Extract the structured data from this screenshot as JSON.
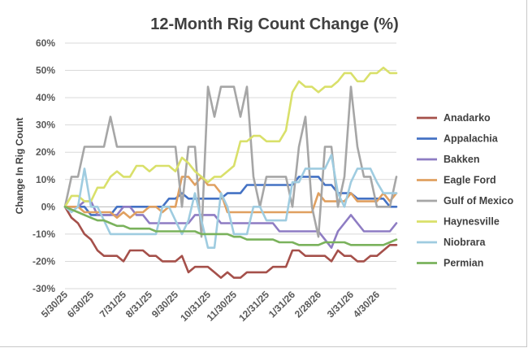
{
  "chart_data": {
    "type": "line",
    "title": "12-Month Rig Count Change (%)",
    "xlabel": "",
    "ylabel": "Change In Rig Count",
    "ylim": [
      -30,
      60
    ],
    "yticks": [
      -30,
      -20,
      -10,
      0,
      10,
      20,
      30,
      40,
      50,
      60
    ],
    "ytick_labels": [
      "-30%",
      "-20%",
      "-10%",
      "0%",
      "10%",
      "20%",
      "30%",
      "40%",
      "50%",
      "60%"
    ],
    "x_tick_labels": [
      "5/30/25",
      "6/30/25",
      "7/31/25",
      "8/31/25",
      "9/30/25",
      "10/31/25",
      "11/30/25",
      "12/31/25",
      "1/31/26",
      "2/28/26",
      "3/31/26",
      "4/30/26"
    ],
    "x_tick_index": [
      0,
      4,
      9,
      13,
      17,
      22,
      26,
      31,
      35,
      39,
      44,
      48
    ],
    "grid": true,
    "legend_position": "right",
    "series": [
      {
        "name": "Anadarko",
        "color": "#a5504a",
        "values": [
          0,
          -4,
          -6,
          -10,
          -12,
          -16,
          -18,
          -18,
          -18,
          -20,
          -16,
          -16,
          -16,
          -18,
          -18,
          -20,
          -20,
          -20,
          -18,
          -24,
          -22,
          -22,
          -22,
          -24,
          -26,
          -24,
          -26,
          -26,
          -24,
          -24,
          -24,
          -24,
          -22,
          -22,
          -22,
          -16,
          -16,
          -18,
          -18,
          -18,
          -18,
          -20,
          -16,
          -18,
          -18,
          -20,
          -20,
          -18,
          -18,
          -16,
          -14,
          -14
        ]
      },
      {
        "name": "Appalachia",
        "color": "#4472c4",
        "values": [
          0,
          0,
          0,
          0,
          -3,
          -3,
          -3,
          -3,
          0,
          0,
          0,
          0,
          0,
          0,
          0,
          0,
          3,
          3,
          5,
          3,
          3,
          3,
          3,
          3,
          3,
          5,
          5,
          5,
          8,
          8,
          8,
          8,
          8,
          8,
          8,
          8,
          11,
          11,
          11,
          11,
          8,
          8,
          5,
          5,
          5,
          3,
          3,
          3,
          3,
          3,
          0,
          0
        ]
      },
      {
        "name": "Bakken",
        "color": "#8e7cc3",
        "values": [
          0,
          0,
          0,
          2,
          2,
          -3,
          -3,
          -3,
          -3,
          0,
          0,
          -3,
          -3,
          -6,
          -6,
          -6,
          -6,
          -6,
          -6,
          -6,
          -3,
          -3,
          -3,
          -3,
          -6,
          -6,
          -6,
          -6,
          -6,
          -6,
          -6,
          -6,
          -6,
          -9,
          -9,
          -9,
          -9,
          -9,
          -9,
          -9,
          -12,
          -15,
          -9,
          -6,
          -3,
          -6,
          -9,
          -9,
          -9,
          -9,
          -9,
          -6
        ]
      },
      {
        "name": "Eagle Ford",
        "color": "#e0a060",
        "values": [
          0,
          0,
          0,
          -2,
          -2,
          -2,
          -2,
          -2,
          -4,
          -2,
          -4,
          -2,
          -2,
          0,
          0,
          -2,
          0,
          0,
          11,
          11,
          8,
          11,
          8,
          8,
          5,
          -2,
          -2,
          -2,
          -2,
          -2,
          -2,
          -2,
          -2,
          -2,
          -2,
          -2,
          -2,
          -2,
          -2,
          5,
          2,
          2,
          2,
          2,
          5,
          2,
          2,
          2,
          2,
          5,
          2,
          5
        ]
      },
      {
        "name": "Gulf of Mexico",
        "color": "#a6a6a6",
        "values": [
          0,
          11,
          11,
          22,
          22,
          22,
          22,
          33,
          22,
          22,
          22,
          22,
          22,
          22,
          22,
          22,
          22,
          22,
          0,
          22,
          22,
          -11,
          44,
          33,
          44,
          44,
          44,
          33,
          44,
          11,
          0,
          11,
          11,
          11,
          11,
          0,
          22,
          33,
          0,
          -11,
          22,
          22,
          0,
          11,
          44,
          22,
          11,
          11,
          0,
          0,
          0,
          11
        ]
      },
      {
        "name": "Haynesville",
        "color": "#d9e06a",
        "values": [
          0,
          4,
          4,
          2,
          2,
          7,
          7,
          11,
          13,
          11,
          11,
          15,
          15,
          13,
          15,
          15,
          15,
          13,
          18,
          16,
          13,
          11,
          9,
          11,
          11,
          13,
          15,
          24,
          24,
          26,
          26,
          24,
          24,
          24,
          28,
          42,
          46,
          44,
          44,
          42,
          44,
          44,
          46,
          49,
          49,
          46,
          46,
          49,
          49,
          51,
          49,
          49
        ]
      },
      {
        "name": "Niobrara",
        "color": "#9fcce0",
        "values": [
          0,
          -2,
          0,
          14,
          0,
          0,
          -5,
          -10,
          -10,
          -10,
          -10,
          -10,
          -10,
          -10,
          -10,
          0,
          0,
          -5,
          -10,
          -5,
          5,
          -5,
          -15,
          -15,
          5,
          0,
          -10,
          -10,
          -10,
          0,
          0,
          -5,
          -5,
          -5,
          -5,
          9,
          9,
          14,
          14,
          14,
          14,
          19,
          5,
          0,
          9,
          14,
          14,
          14,
          9,
          5,
          5,
          5
        ]
      },
      {
        "name": "Permian",
        "color": "#7ab25c",
        "values": [
          0,
          -1,
          -2,
          -3,
          -4,
          -5,
          -5,
          -6,
          -7,
          -7,
          -8,
          -8,
          -8,
          -8,
          -9,
          -9,
          -9,
          -9,
          -9,
          -9,
          -9,
          -10,
          -10,
          -10,
          -10,
          -10,
          -11,
          -11,
          -12,
          -12,
          -12,
          -12,
          -12,
          -13,
          -13,
          -13,
          -14,
          -14,
          -14,
          -14,
          -13,
          -13,
          -13,
          -13,
          -14,
          -14,
          -14,
          -14,
          -14,
          -14,
          -13,
          -12
        ]
      }
    ]
  }
}
